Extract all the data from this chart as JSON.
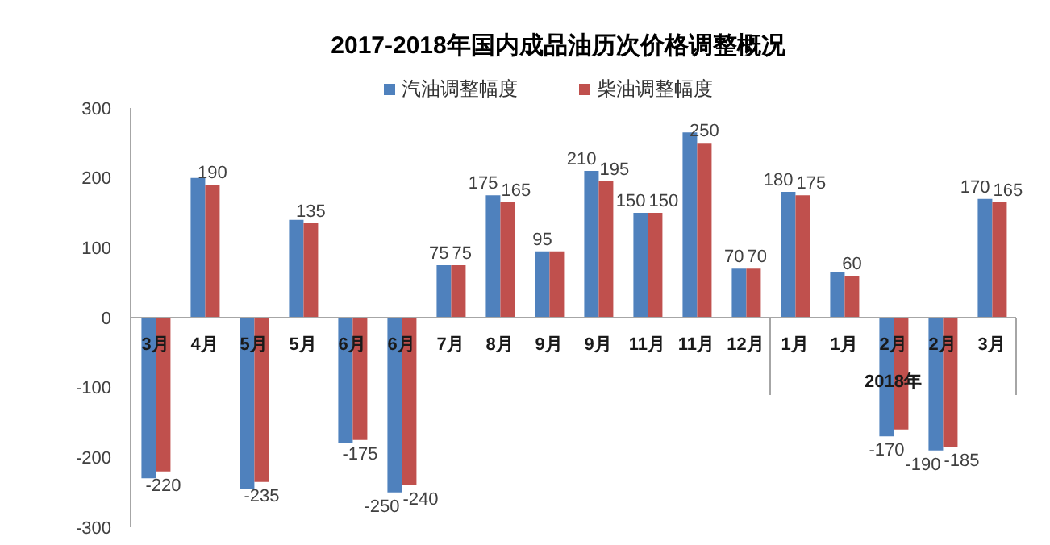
{
  "chart_data": {
    "type": "bar",
    "title": "2017-2018年国内成品油历次价格调整概况",
    "categories": [
      "3月",
      "4月",
      "5月",
      "5月",
      "6月",
      "6月",
      "7月",
      "8月",
      "9月",
      "9月",
      "11月",
      "11月",
      "12月",
      "1月",
      "1月",
      "2月",
      "2月",
      "3月"
    ],
    "series": [
      {
        "name": "汽油调整幅度",
        "color": "#4f81bd",
        "values": [
          -230,
          200,
          -245,
          140,
          -180,
          -250,
          75,
          175,
          95,
          210,
          150,
          265,
          70,
          180,
          65,
          -170,
          -190,
          170
        ],
        "value_labels": [
          null,
          null,
          null,
          null,
          null,
          "-250",
          "75",
          "175",
          "95",
          "210",
          "150",
          null,
          "70",
          "180",
          null,
          "-170",
          "-190",
          "170"
        ]
      },
      {
        "name": "柴油调整幅度",
        "color": "#c0504d",
        "values": [
          -220,
          190,
          -235,
          135,
          -175,
          -240,
          75,
          165,
          95,
          195,
          150,
          250,
          70,
          175,
          60,
          -160,
          -185,
          165
        ],
        "value_labels": [
          "-220",
          "190",
          "-235",
          "135",
          "-175",
          "-240",
          "75",
          "165",
          null,
          "195",
          "150",
          "250",
          "70",
          "175",
          "60",
          null,
          "-185",
          "165"
        ]
      }
    ],
    "ylim": [
      -300,
      300
    ],
    "yticks": [
      -300,
      -200,
      -100,
      0,
      100,
      200,
      300
    ],
    "legend": "top",
    "annotations": [
      "2018年"
    ]
  }
}
